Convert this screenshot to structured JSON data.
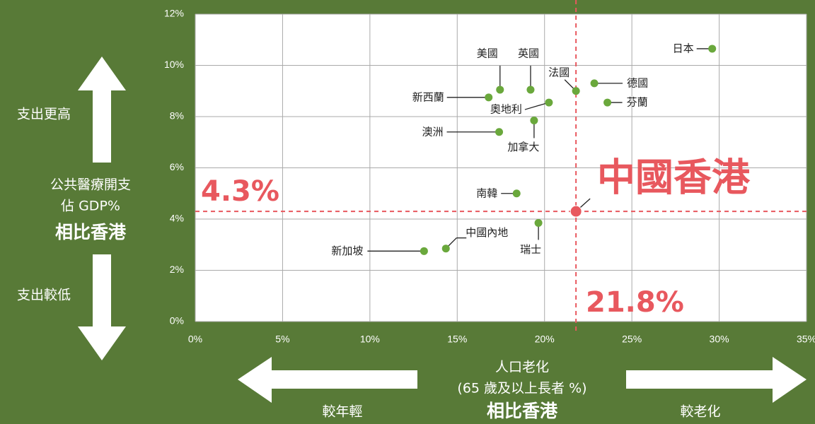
{
  "chart_data": {
    "type": "scatter",
    "y_axis_labels": {
      "higher": "支出更高",
      "title_line1": "公共醫療開支",
      "title_line2": "佔 GDP%",
      "compare": "相比香港",
      "lower": "支出較低"
    },
    "x_axis_labels": {
      "title_line1": "人口老化",
      "title_line2": "(65 歲及以上長者 %)",
      "compare": "相比香港",
      "younger": "較年輕",
      "older": "較老化"
    },
    "points": [
      {
        "label": "日本",
        "x": 29.6,
        "y": 10.65
      },
      {
        "label": "美國",
        "x": 17.45,
        "y": 9.05
      },
      {
        "label": "英國",
        "x": 19.2,
        "y": 9.05
      },
      {
        "label": "法國",
        "x": 21.8,
        "y": 9.0
      },
      {
        "label": "德國",
        "x": 22.85,
        "y": 9.3
      },
      {
        "label": "芬蘭",
        "x": 23.6,
        "y": 8.55
      },
      {
        "label": "新西蘭",
        "x": 16.8,
        "y": 8.75
      },
      {
        "label": "奧地利",
        "x": 20.25,
        "y": 8.55
      },
      {
        "label": "澳洲",
        "x": 17.4,
        "y": 7.4
      },
      {
        "label": "加拿大",
        "x": 19.4,
        "y": 7.85
      },
      {
        "label": "南韓",
        "x": 18.4,
        "y": 5.0
      },
      {
        "label": "瑞士",
        "x": 19.65,
        "y": 3.85
      },
      {
        "label": "中國內地",
        "x": 14.35,
        "y": 2.85
      },
      {
        "label": "新加坡",
        "x": 13.1,
        "y": 2.75
      }
    ],
    "color": "#6aa83c",
    "highlight": {
      "label": "中國香港",
      "x": 21.8,
      "y": 4.3,
      "x_label": "21.8%",
      "y_label": "4.3%",
      "color": "#e8585e"
    },
    "xlim": [
      0,
      35
    ],
    "ylim": [
      0,
      12
    ],
    "xticks": [
      {
        "value": 0,
        "label": "0%"
      },
      {
        "value": 5,
        "label": "5%"
      },
      {
        "value": 10,
        "label": "10%"
      },
      {
        "value": 15,
        "label": "15%"
      },
      {
        "value": 20,
        "label": "20%"
      },
      {
        "value": 25,
        "label": "25%"
      },
      {
        "value": 30,
        "label": "30%"
      },
      {
        "value": 35,
        "label": "35%"
      }
    ],
    "yticks": [
      {
        "value": 0,
        "label": "0%"
      },
      {
        "value": 2,
        "label": "2%"
      },
      {
        "value": 4,
        "label": "4%"
      },
      {
        "value": 6,
        "label": "6%"
      },
      {
        "value": 8,
        "label": "8%"
      },
      {
        "value": 10,
        "label": "10%"
      },
      {
        "value": 12,
        "label": "12%"
      }
    ],
    "grid": true
  }
}
